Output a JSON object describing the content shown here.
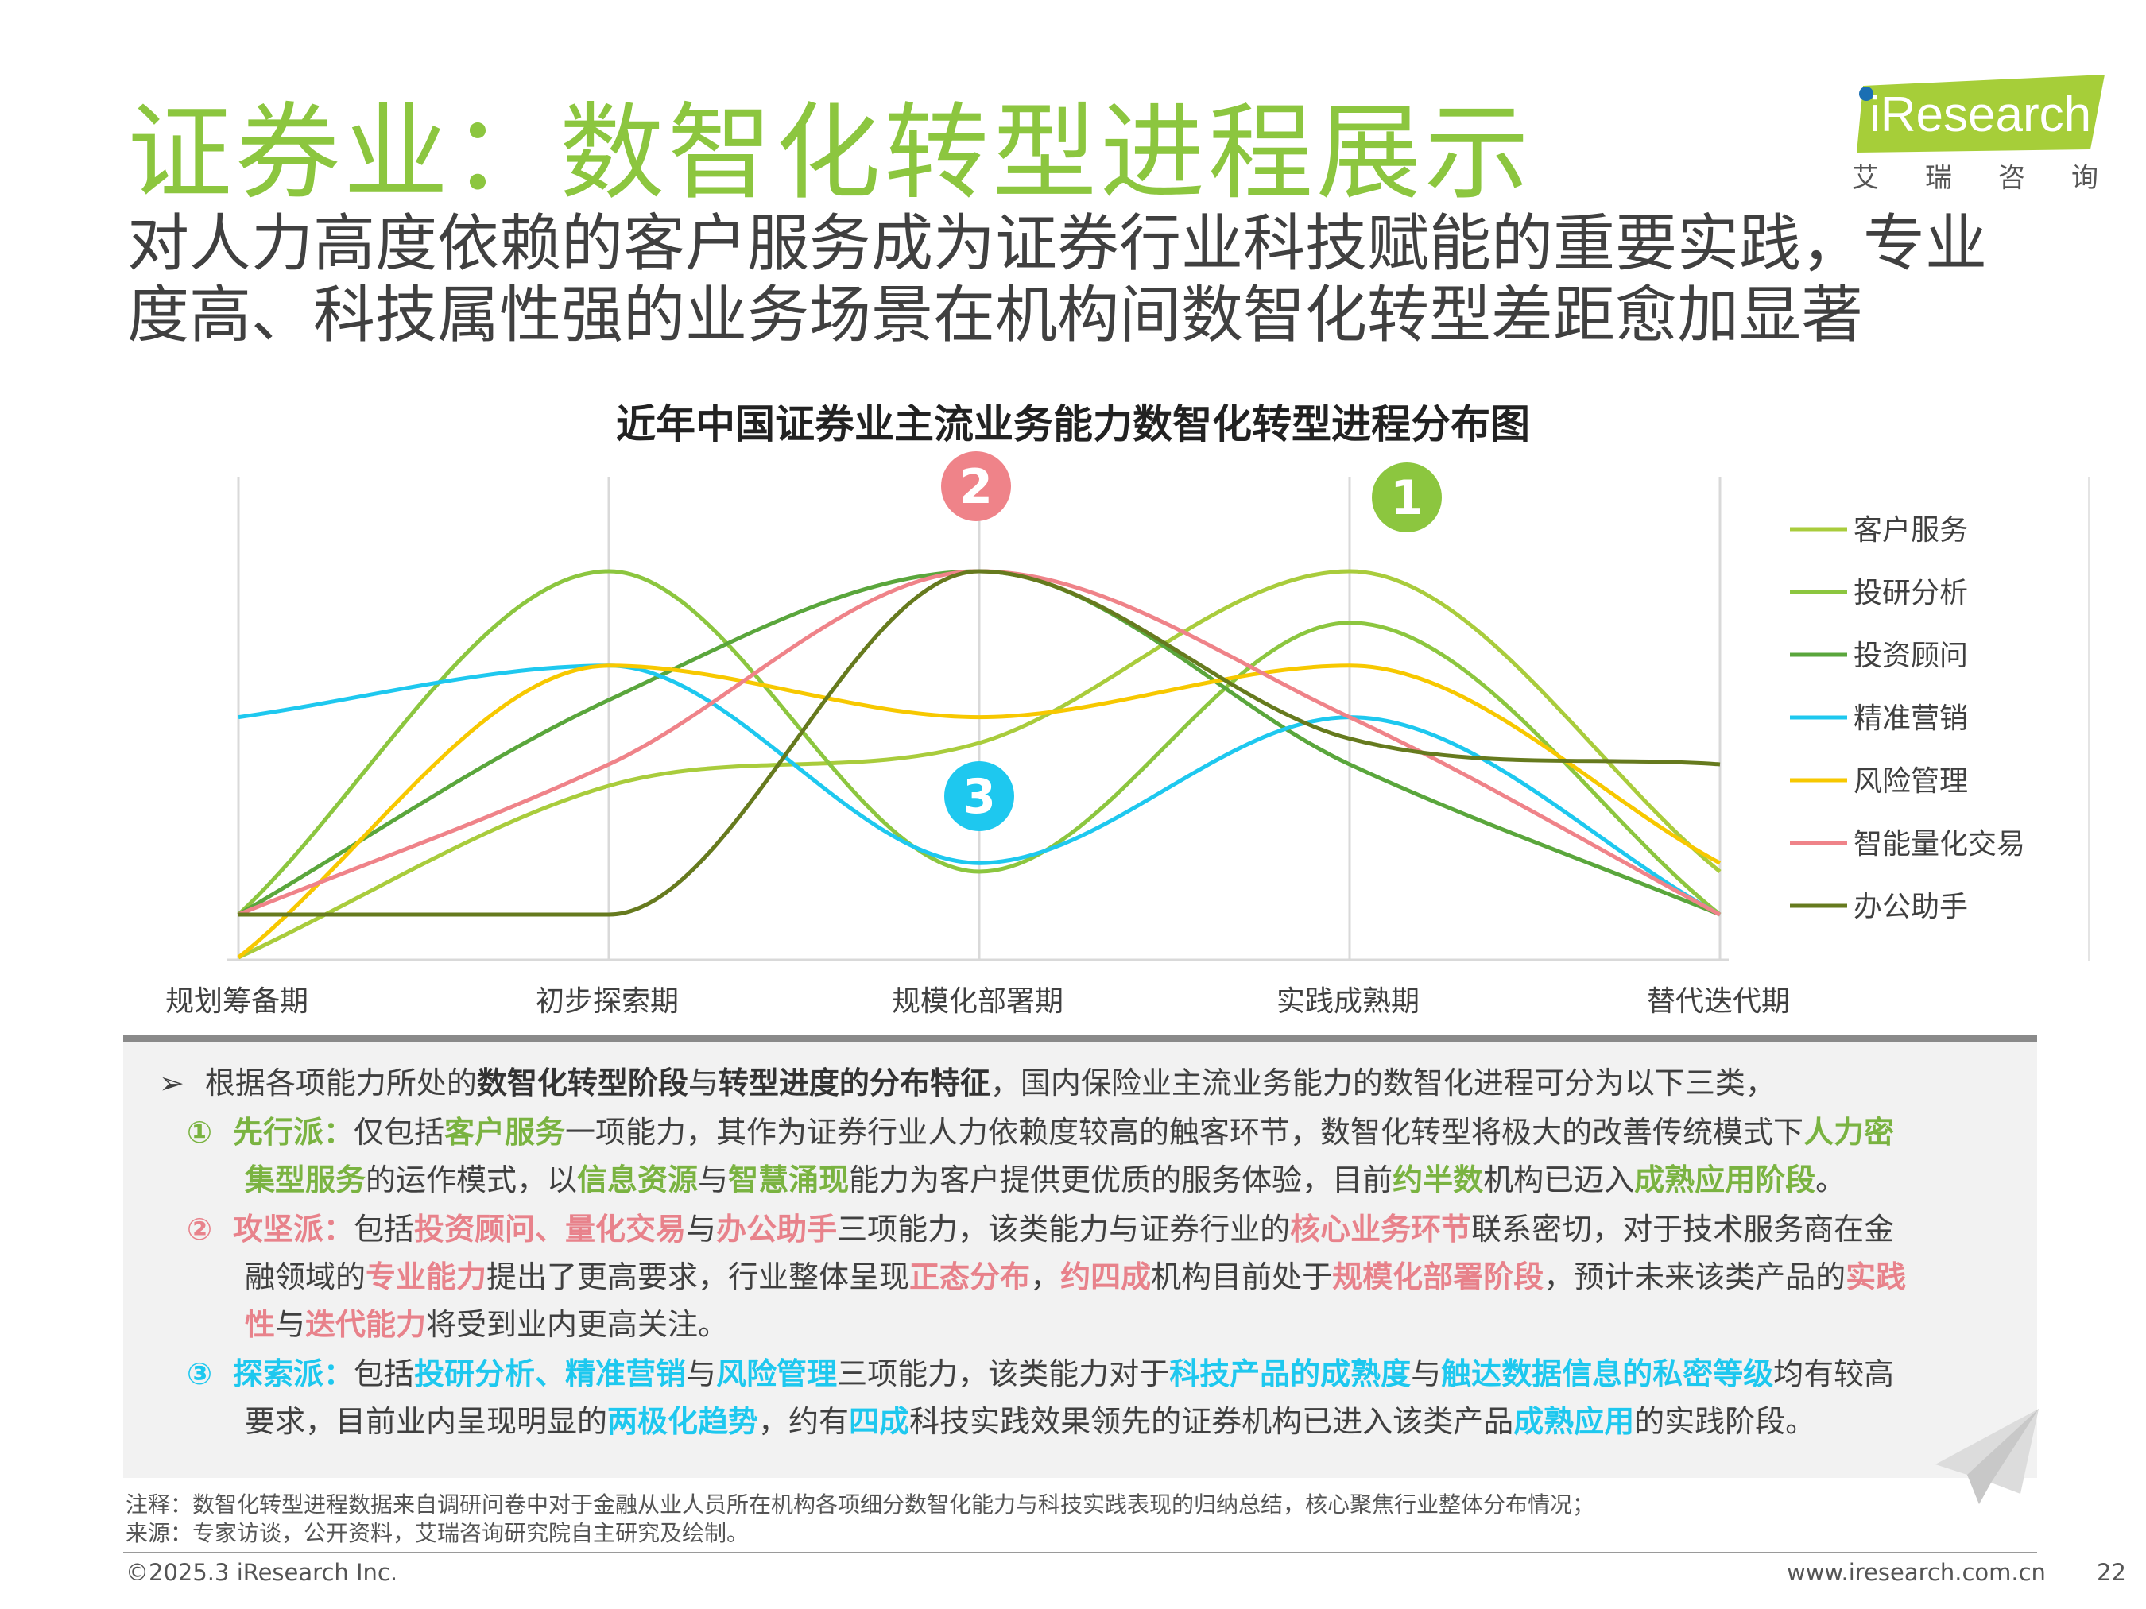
{
  "title": "证券业：数智化转型进程展示",
  "subtitle": "对人力高度依赖的客户服务成为证券行业科技赋能的重要实践，专业度高、科技属性强的业务场景在机构间数智化转型差距愈加显著",
  "logo": {
    "text": "iResearch",
    "sub": [
      "艾",
      "瑞",
      "咨",
      "询"
    ]
  },
  "chart_data": {
    "type": "line",
    "title": "近年中国证券业主流业务能力数智化转型进程分布图",
    "categories": [
      "规划筹备期",
      "初步探索期",
      "规模化部署期",
      "实践成熟期",
      "替代迭代期"
    ],
    "ylim": [
      0,
      100
    ],
    "grid": "vertical",
    "legend_position": "right",
    "series": [
      {
        "name": "客户服务",
        "color": "#a9cc3c",
        "values": [
          0,
          40,
          50,
          90,
          20
        ]
      },
      {
        "name": "投研分析",
        "color": "#8cc63f",
        "values": [
          10,
          90,
          20,
          78,
          10
        ]
      },
      {
        "name": "投资顾问",
        "color": "#5aa63c",
        "values": [
          10,
          60,
          90,
          45,
          10
        ]
      },
      {
        "name": "精准营销",
        "color": "#1ec8ef",
        "values": [
          56,
          68,
          22,
          56,
          10
        ]
      },
      {
        "name": "风险管理",
        "color": "#f7c800",
        "values": [
          0,
          68,
          56,
          68,
          22
        ]
      },
      {
        "name": "智能量化交易",
        "color": "#ef8389",
        "values": [
          10,
          45,
          90,
          56,
          10
        ]
      },
      {
        "name": "办公助手",
        "color": "#667a1e",
        "values": [
          10,
          10,
          90,
          51,
          45
        ]
      }
    ],
    "annotations": [
      {
        "label": "1",
        "color": "#8cc63f",
        "near": "实践成熟期"
      },
      {
        "label": "2",
        "color": "#ef8389",
        "near": "规模化部署期"
      },
      {
        "label": "3",
        "color": "#1ec8ef",
        "near": "规模化部署期"
      }
    ]
  },
  "desc": {
    "intro": [
      "根据各项能力所处的",
      "数智化转型阶段",
      "与",
      "转型进度的分布特征",
      "，国内保险业主流业务能力的数智化进程可分为以下三类，"
    ],
    "p1": {
      "num": "①",
      "l1": [
        "先行派：",
        "仅包括",
        "客户服务",
        "一项能力，其作为证券行业人力依赖度较高的触客环节，数智化转型将极大的改善传统模式下",
        "人力密"
      ],
      "l2": [
        "集型服务",
        "的运作模式，以",
        "信息资源",
        "与",
        "智慧涌现",
        "能力为客户提供更优质的服务体验，目前",
        "约半数",
        "机构已迈入",
        "成熟应用阶段",
        "。"
      ]
    },
    "p2": {
      "num": "②",
      "l1": [
        "攻坚派：",
        "包括",
        "投资顾问、量化交易",
        "与",
        "办公助手",
        "三项能力，该类能力与证券行业的",
        "核心业务环节",
        "联系密切，对于技术服务商在金"
      ],
      "l2": [
        "融领域的",
        "专业能力",
        "提出了更高要求，行业整体呈现",
        "正态分布",
        "，",
        "约四成",
        "机构目前处于",
        "规模化部署阶段",
        "，预计未来该类产品的",
        "实践"
      ],
      "l3": [
        "性",
        "与",
        "迭代能力",
        "将受到业内更高关注。"
      ]
    },
    "p3": {
      "num": "③",
      "l1": [
        "探索派：",
        "包括",
        "投研分析、精准营销",
        "与",
        "风险管理",
        "三项能力，该类能力对于",
        "科技产品的成熟度",
        "与",
        "触达数据信息的私密等级",
        "均有较高"
      ],
      "l2": [
        "要求，目前业内呈现明显的",
        "两极化趋势",
        "，约有",
        "四成",
        "科技实践效果领先的证券机构已进入该类产品",
        "成熟应用",
        "的实践阶段。"
      ]
    }
  },
  "notes": {
    "note": "注释：数智化转型进程数据来自调研问卷中对于金融从业人员所在机构各项细分数智化能力与科技实践表现的归纳总结，核心聚焦行业整体分布情况；",
    "source": "来源：专家访谈，公开资料，艾瑞咨询研究院自主研究及绘制。"
  },
  "footer": {
    "copyright": "©2025.3 iResearch Inc.",
    "url": "www.iresearch.com.cn",
    "page": "22"
  }
}
